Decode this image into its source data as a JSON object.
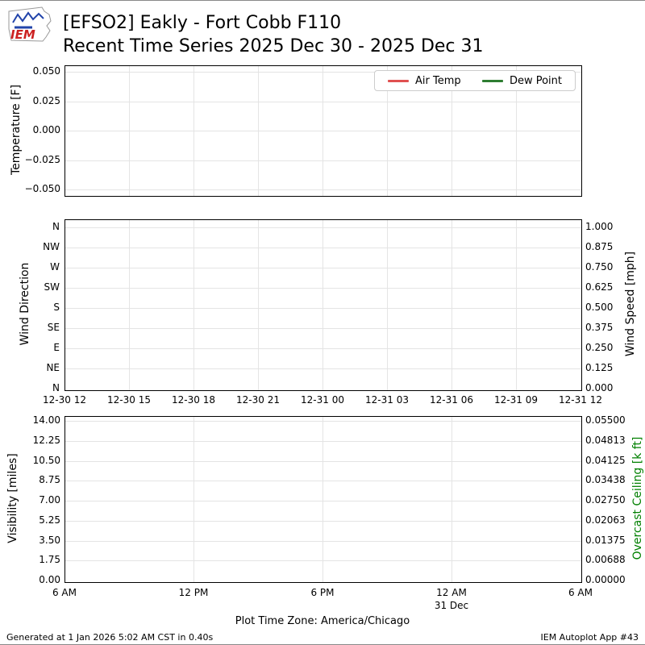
{
  "header": {
    "title": "[EFSO2] Eakly - Fort Cobb F110",
    "subtitle": "Recent Time Series 2025 Dec 30 - 2025 Dec 31",
    "logo": "IEM"
  },
  "chart_data": [
    {
      "type": "line",
      "panel": "temperature",
      "ylabel": "Temperature [F]",
      "ylim": [
        -0.05,
        0.05
      ],
      "ytick_labels": [
        "0.050",
        "0.025",
        "0.000",
        "−0.025",
        "−0.050"
      ],
      "grid": true,
      "legend_position": "upper right",
      "series": [
        {
          "name": "Air Temp",
          "color": "#e05050",
          "values": []
        },
        {
          "name": "Dew Point",
          "color": "#2e7d32",
          "values": []
        }
      ]
    },
    {
      "type": "line",
      "panel": "wind",
      "ylabel_left": "Wind Direction",
      "ylabel_right": "Wind Speed [mph]",
      "ytick_labels_left": [
        "N",
        "NW",
        "W",
        "SW",
        "S",
        "SE",
        "E",
        "NE",
        "N"
      ],
      "ytick_labels_right": [
        "1.000",
        "0.875",
        "0.750",
        "0.625",
        "0.500",
        "0.375",
        "0.250",
        "0.125",
        "0.000"
      ],
      "ylim_right": [
        0,
        1
      ],
      "xtick_labels": [
        "12-30 12",
        "12-30 15",
        "12-30 18",
        "12-30 21",
        "12-31 00",
        "12-31 03",
        "12-31 06",
        "12-31 09",
        "12-31 12"
      ],
      "grid": true,
      "series": []
    },
    {
      "type": "line",
      "panel": "visibility-ceiling",
      "ylabel_left": "Visibility [miles]",
      "ylabel_right": "Overcast Ceiling [k ft]",
      "ylabel_right_color": "#008000",
      "ytick_labels_left": [
        "14.00",
        "12.25",
        "10.50",
        "8.75",
        "7.00",
        "5.25",
        "3.50",
        "1.75",
        "0.00"
      ],
      "ytick_labels_right": [
        "0.05500",
        "0.04813",
        "0.04125",
        "0.03438",
        "0.02750",
        "0.02063",
        "0.01375",
        "0.00688",
        "0.00000"
      ],
      "ylim_left": [
        0,
        14
      ],
      "ylim_right": [
        0,
        0.055
      ],
      "xtick_labels": [
        "6 AM",
        "12 PM",
        "6 PM",
        "12 AM",
        "6 AM"
      ],
      "xtick_sublabels": [
        "",
        "",
        "",
        "31 Dec",
        ""
      ],
      "grid": true,
      "series": []
    }
  ],
  "footer": {
    "timezone_note": "Plot Time Zone: America/Chicago",
    "generated": "Generated at 1 Jan 2026 5:02 AM CST in 0.40s",
    "app": "IEM Autoplot App #43"
  }
}
